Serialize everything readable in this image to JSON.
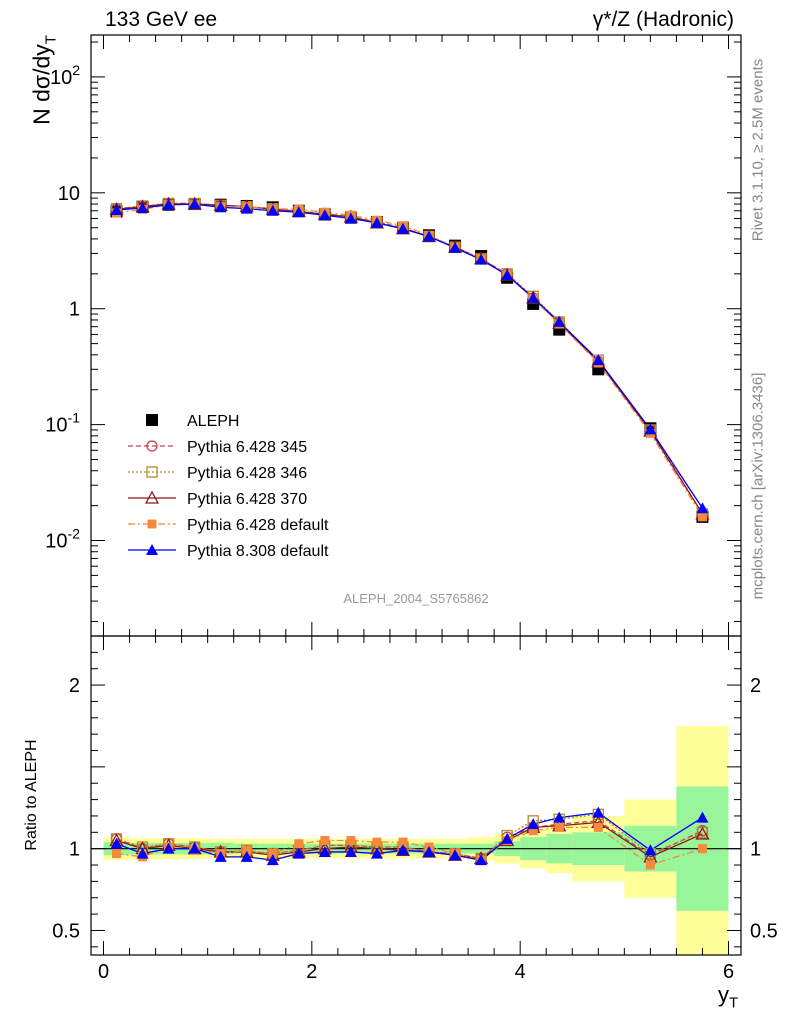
{
  "header": {
    "left": "133 GeV ee",
    "right": "γ*/Z (Hadronic)"
  },
  "side_text": {
    "rivet": "Rivet 3.1.10, ≥ 2.5M events",
    "mcplots": "mcplots.cern.ch [arXiv:1306.3436]"
  },
  "analysis_id": "ALEPH_2004_S5765862",
  "chart_data": [
    {
      "type": "scatter",
      "panel": "main",
      "ylabel": "N dσ/dy_T",
      "yscale": "log",
      "ylim": [
        0.0015,
        230
      ],
      "xlim": [
        -0.12,
        6.12
      ],
      "ytick_labels": [
        "10^-2",
        "10^-1",
        "1",
        "10",
        "10^2"
      ],
      "legend_position": "middle-left",
      "x": [
        0.125,
        0.375,
        0.625,
        0.875,
        1.125,
        1.375,
        1.625,
        1.875,
        2.125,
        2.375,
        2.625,
        2.875,
        3.125,
        3.375,
        3.625,
        3.875,
        4.125,
        4.375,
        4.75,
        5.25,
        5.75
      ],
      "series": [
        {
          "name": "ALEPH",
          "color": "#000000",
          "marker": "square",
          "values": [
            6.9,
            7.6,
            7.9,
            8.0,
            7.9,
            7.7,
            7.5,
            7.0,
            6.5,
            6.1,
            5.6,
            5.0,
            4.3,
            3.5,
            2.85,
            1.85,
            1.1,
            0.66,
            0.3,
            0.093,
            0.016
          ]
        },
        {
          "name": "Pythia 6.428 345",
          "color": "#c84050",
          "marker": "open-circle",
          "dash": "dashed",
          "values": [
            7.3,
            7.6,
            8.1,
            8.1,
            7.8,
            7.6,
            7.3,
            6.9,
            6.6,
            6.2,
            5.6,
            5.0,
            4.2,
            3.4,
            2.7,
            2.0,
            1.24,
            0.76,
            0.35,
            0.09,
            0.017
          ]
        },
        {
          "name": "Pythia 6.428 346",
          "color": "#b8862a",
          "marker": "open-square",
          "dash": "dotted",
          "values": [
            7.3,
            7.7,
            8.1,
            8.1,
            7.8,
            7.6,
            7.3,
            6.9,
            6.6,
            6.2,
            5.6,
            5.0,
            4.2,
            3.4,
            2.7,
            2.0,
            1.28,
            0.77,
            0.36,
            0.09,
            0.017
          ]
        },
        {
          "name": "Pythia 6.428 370",
          "color": "#8b1a1a",
          "marker": "open-triangle",
          "dash": "solid",
          "values": [
            7.2,
            7.6,
            8.0,
            8.0,
            7.8,
            7.6,
            7.2,
            6.9,
            6.5,
            6.2,
            5.5,
            4.9,
            4.2,
            3.4,
            2.7,
            1.95,
            1.24,
            0.75,
            0.35,
            0.088,
            0.017
          ]
        },
        {
          "name": "Pythia 6.428 default",
          "color": "#f58a3c",
          "marker": "filled-square",
          "dash": "dashdot",
          "values": [
            6.7,
            7.2,
            7.9,
            7.9,
            7.6,
            7.6,
            7.3,
            7.2,
            6.8,
            6.4,
            5.8,
            5.2,
            4.3,
            3.4,
            2.7,
            1.95,
            1.22,
            0.74,
            0.34,
            0.084,
            0.016
          ]
        },
        {
          "name": "Pythia 8.308 default",
          "color": "#0000ff",
          "marker": "filled-triangle",
          "dash": "solid",
          "values": [
            7.1,
            7.4,
            7.9,
            8.0,
            7.5,
            7.3,
            7.0,
            6.8,
            6.4,
            6.0,
            5.5,
            4.9,
            4.2,
            3.35,
            2.65,
            1.95,
            1.24,
            0.77,
            0.36,
            0.091,
            0.019
          ]
        }
      ]
    },
    {
      "type": "scatter",
      "panel": "ratio",
      "ylabel": "Ratio to ALEPH",
      "xlabel": "y_T",
      "ylim": [
        0.35,
        2.3
      ],
      "xlim": [
        -0.12,
        6.12
      ],
      "yticks": [
        0.5,
        1,
        2
      ],
      "ytick_labels": [
        "0.5",
        "1",
        "2"
      ],
      "xticks": [
        0,
        2,
        4,
        6
      ],
      "xtick_labels": [
        "0",
        "2",
        "4",
        "6"
      ],
      "bins": [
        [
          0,
          0.25
        ],
        [
          0.25,
          0.5
        ],
        [
          0.5,
          0.75
        ],
        [
          0.75,
          1.0
        ],
        [
          1.0,
          1.25
        ],
        [
          1.25,
          1.5
        ],
        [
          1.5,
          1.75
        ],
        [
          1.75,
          2.0
        ],
        [
          2.0,
          2.25
        ],
        [
          2.25,
          2.5
        ],
        [
          2.5,
          2.75
        ],
        [
          2.75,
          3.0
        ],
        [
          3.0,
          3.25
        ],
        [
          3.25,
          3.5
        ],
        [
          3.5,
          3.75
        ],
        [
          3.75,
          4.0
        ],
        [
          4.0,
          4.25
        ],
        [
          4.25,
          4.5
        ],
        [
          4.5,
          5.0
        ],
        [
          5.0,
          5.5
        ],
        [
          5.5,
          6.0
        ]
      ],
      "band_inner": {
        "color": "#99f599",
        "half_widths": [
          0.04,
          0.035,
          0.035,
          0.035,
          0.035,
          0.03,
          0.03,
          0.03,
          0.03,
          0.03,
          0.03,
          0.03,
          0.03,
          0.03,
          0.03,
          0.045,
          0.07,
          0.09,
          0.1,
          0.14,
          0.38
        ]
      },
      "band_outer": {
        "color": "#ffff99",
        "half_widths": [
          0.07,
          0.065,
          0.065,
          0.065,
          0.06,
          0.06,
          0.06,
          0.06,
          0.06,
          0.06,
          0.06,
          0.06,
          0.06,
          0.06,
          0.07,
          0.09,
          0.12,
          0.15,
          0.2,
          0.3,
          0.75
        ]
      },
      "series": [
        {
          "name": "Pythia 6.428 345",
          "values": [
            1.06,
            1.0,
            1.03,
            1.01,
            0.98,
            0.98,
            0.97,
            0.99,
            1.02,
            1.02,
            1.01,
            1.01,
            0.98,
            0.97,
            0.94,
            1.07,
            1.13,
            1.15,
            1.17,
            0.96,
            1.11
          ]
        },
        {
          "name": "Pythia 6.428 346",
          "values": [
            1.06,
            1.01,
            1.03,
            1.01,
            0.98,
            0.99,
            0.97,
            0.99,
            1.02,
            1.02,
            1.01,
            1.01,
            0.98,
            0.97,
            0.94,
            1.08,
            1.17,
            1.18,
            1.21,
            0.97,
            1.1
          ]
        },
        {
          "name": "Pythia 6.428 370",
          "values": [
            1.05,
            1.0,
            1.02,
            1.0,
            0.98,
            0.98,
            0.96,
            0.98,
            1.0,
            1.01,
            1.0,
            0.99,
            0.98,
            0.96,
            0.94,
            1.05,
            1.13,
            1.14,
            1.16,
            0.95,
            1.09
          ]
        },
        {
          "name": "Pythia 6.428 default",
          "values": [
            0.97,
            0.95,
            1.01,
            0.99,
            0.97,
            0.99,
            0.97,
            1.03,
            1.05,
            1.05,
            1.04,
            1.04,
            1.01,
            0.97,
            0.93,
            1.05,
            1.11,
            1.13,
            1.13,
            0.9,
            1.0
          ]
        },
        {
          "name": "Pythia 8.308 default",
          "values": [
            1.03,
            0.97,
            1.0,
            1.0,
            0.95,
            0.95,
            0.93,
            0.97,
            0.98,
            0.98,
            0.97,
            0.99,
            0.98,
            0.96,
            0.93,
            1.06,
            1.15,
            1.19,
            1.22,
            0.99,
            1.19
          ]
        }
      ]
    }
  ]
}
